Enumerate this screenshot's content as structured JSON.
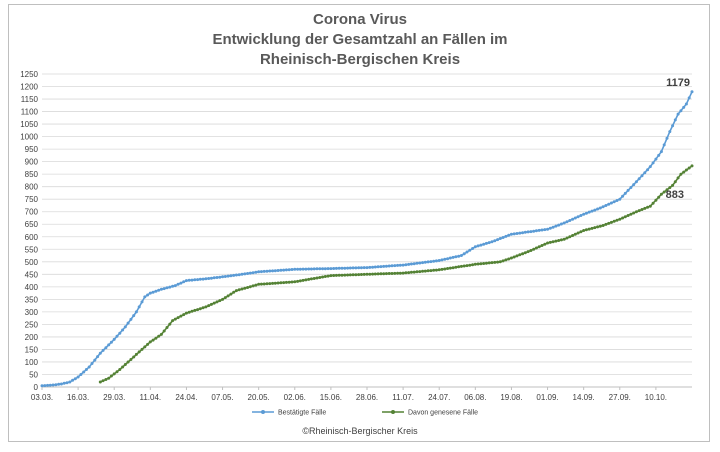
{
  "chart_data": {
    "type": "line",
    "title": [
      "Corona Virus",
      "Entwicklung der Gesamtzahl an Fällen im",
      "Rheinisch-Bergischen Kreis"
    ],
    "x_tick_labels": [
      "03.03.",
      "16.03.",
      "29.03.",
      "11.04.",
      "24.04.",
      "07.05.",
      "20.05.",
      "02.06.",
      "15.06.",
      "28.06.",
      "11.07.",
      "24.07.",
      "06.08.",
      "19.08.",
      "01.09.",
      "14.09.",
      "27.09.",
      "10.10."
    ],
    "x_start_date": "2020-03-03",
    "y_ticks": [
      0,
      50,
      100,
      150,
      200,
      250,
      300,
      350,
      400,
      450,
      500,
      550,
      600,
      650,
      700,
      750,
      800,
      850,
      900,
      950,
      1000,
      1050,
      1100,
      1150,
      1200,
      1250
    ],
    "ylim": [
      0,
      1250
    ],
    "grid": true,
    "legend_position": "bottom",
    "series": [
      {
        "name": "Bestätigte Fälle",
        "color": "#5b9bd5",
        "end_label": "1179",
        "points": [
          [
            "2020-03-03",
            5
          ],
          [
            "2020-03-07",
            8
          ],
          [
            "2020-03-10",
            12
          ],
          [
            "2020-03-13",
            20
          ],
          [
            "2020-03-16",
            40
          ],
          [
            "2020-03-20",
            80
          ],
          [
            "2020-03-24",
            135
          ],
          [
            "2020-03-29",
            190
          ],
          [
            "2020-04-02",
            240
          ],
          [
            "2020-04-06",
            300
          ],
          [
            "2020-04-09",
            360
          ],
          [
            "2020-04-11",
            375
          ],
          [
            "2020-04-15",
            390
          ],
          [
            "2020-04-20",
            405
          ],
          [
            "2020-04-24",
            425
          ],
          [
            "2020-05-01",
            432
          ],
          [
            "2020-05-07",
            440
          ],
          [
            "2020-05-14",
            450
          ],
          [
            "2020-05-20",
            460
          ],
          [
            "2020-06-02",
            470
          ],
          [
            "2020-06-15",
            473
          ],
          [
            "2020-06-28",
            477
          ],
          [
            "2020-07-11",
            487
          ],
          [
            "2020-07-24",
            505
          ],
          [
            "2020-08-01",
            525
          ],
          [
            "2020-08-06",
            560
          ],
          [
            "2020-08-12",
            580
          ],
          [
            "2020-08-19",
            610
          ],
          [
            "2020-09-01",
            630
          ],
          [
            "2020-09-07",
            655
          ],
          [
            "2020-09-14",
            690
          ],
          [
            "2020-09-20",
            715
          ],
          [
            "2020-09-27",
            750
          ],
          [
            "2020-10-03",
            820
          ],
          [
            "2020-10-08",
            880
          ],
          [
            "2020-10-12",
            940
          ],
          [
            "2020-10-15",
            1020
          ],
          [
            "2020-10-18",
            1090
          ],
          [
            "2020-10-21",
            1130
          ],
          [
            "2020-10-23",
            1179
          ]
        ]
      },
      {
        "name": "Davon genesene Fälle",
        "color": "#548235",
        "end_label": "883",
        "points": [
          [
            "2020-03-24",
            20
          ],
          [
            "2020-03-27",
            35
          ],
          [
            "2020-03-31",
            70
          ],
          [
            "2020-04-04",
            110
          ],
          [
            "2020-04-08",
            150
          ],
          [
            "2020-04-11",
            180
          ],
          [
            "2020-04-15",
            210
          ],
          [
            "2020-04-19",
            265
          ],
          [
            "2020-04-24",
            295
          ],
          [
            "2020-05-01",
            320
          ],
          [
            "2020-05-07",
            350
          ],
          [
            "2020-05-12",
            385
          ],
          [
            "2020-05-20",
            410
          ],
          [
            "2020-06-02",
            420
          ],
          [
            "2020-06-15",
            445
          ],
          [
            "2020-06-28",
            450
          ],
          [
            "2020-07-11",
            455
          ],
          [
            "2020-07-24",
            468
          ],
          [
            "2020-08-06",
            490
          ],
          [
            "2020-08-15",
            500
          ],
          [
            "2020-08-19",
            515
          ],
          [
            "2020-08-26",
            545
          ],
          [
            "2020-09-01",
            575
          ],
          [
            "2020-09-07",
            590
          ],
          [
            "2020-09-14",
            625
          ],
          [
            "2020-09-21",
            645
          ],
          [
            "2020-09-27",
            670
          ],
          [
            "2020-10-03",
            700
          ],
          [
            "2020-10-08",
            722
          ],
          [
            "2020-10-12",
            770
          ],
          [
            "2020-10-16",
            805
          ],
          [
            "2020-10-19",
            850
          ],
          [
            "2020-10-23",
            883
          ]
        ]
      }
    ]
  },
  "footer": "©Rheinisch-Bergischer Kreis"
}
